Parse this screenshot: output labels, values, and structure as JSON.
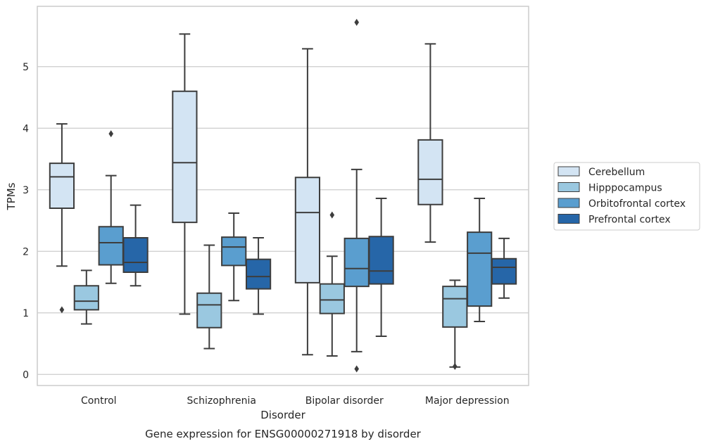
{
  "chart_data": {
    "type": "box",
    "title": "Gene expression for ENSG00000271918 by disorder",
    "xlabel": "Disorder",
    "ylabel": "TPMs",
    "ylim": [
      -0.18,
      5.98
    ],
    "yticks": [
      0,
      1,
      2,
      3,
      4,
      5
    ],
    "grid": true,
    "legend_position": "right",
    "categories": [
      "Control",
      "Schizophrenia",
      "Bipolar disorder",
      "Major depression"
    ],
    "series": [
      {
        "name": "Cerebellum",
        "color": "#d3e4f3",
        "boxes": [
          {
            "whislo": 1.76,
            "q1": 2.7,
            "med": 3.21,
            "q3": 3.43,
            "whishi": 4.07,
            "fliers": [
              1.05
            ]
          },
          {
            "whislo": 0.98,
            "q1": 2.47,
            "med": 3.44,
            "q3": 4.6,
            "whishi": 5.53,
            "fliers": []
          },
          {
            "whislo": 0.32,
            "q1": 1.49,
            "med": 2.63,
            "q3": 3.2,
            "whishi": 5.29,
            "fliers": []
          },
          {
            "whislo": 2.15,
            "q1": 2.76,
            "med": 3.17,
            "q3": 3.81,
            "whishi": 5.37,
            "fliers": []
          }
        ]
      },
      {
        "name": "Hipppocampus",
        "color": "#9ac8e0",
        "boxes": [
          {
            "whislo": 0.82,
            "q1": 1.05,
            "med": 1.19,
            "q3": 1.44,
            "whishi": 1.69,
            "fliers": []
          },
          {
            "whislo": 0.42,
            "q1": 0.76,
            "med": 1.13,
            "q3": 1.32,
            "whishi": 2.1,
            "fliers": []
          },
          {
            "whislo": 0.3,
            "q1": 0.99,
            "med": 1.21,
            "q3": 1.47,
            "whishi": 1.92,
            "fliers": [
              2.59
            ]
          },
          {
            "whislo": 0.12,
            "q1": 0.77,
            "med": 1.23,
            "q3": 1.43,
            "whishi": 1.53,
            "fliers": [
              0.13
            ]
          }
        ]
      },
      {
        "name": "Orbitofrontal cortex",
        "color": "#5a9ecf",
        "boxes": [
          {
            "whislo": 1.48,
            "q1": 1.78,
            "med": 2.14,
            "q3": 2.4,
            "whishi": 3.23,
            "fliers": [
              3.91
            ]
          },
          {
            "whislo": 1.2,
            "q1": 1.77,
            "med": 2.07,
            "q3": 2.23,
            "whishi": 2.62,
            "fliers": []
          },
          {
            "whislo": 0.37,
            "q1": 1.43,
            "med": 1.72,
            "q3": 2.21,
            "whishi": 3.33,
            "fliers": [
              5.72,
              0.09
            ]
          },
          {
            "whislo": 0.86,
            "q1": 1.11,
            "med": 1.97,
            "q3": 2.31,
            "whishi": 2.86,
            "fliers": []
          }
        ]
      },
      {
        "name": "Prefrontal cortex",
        "color": "#2666a8",
        "boxes": [
          {
            "whislo": 1.44,
            "q1": 1.66,
            "med": 1.82,
            "q3": 2.22,
            "whishi": 2.75,
            "fliers": []
          },
          {
            "whislo": 0.98,
            "q1": 1.39,
            "med": 1.59,
            "q3": 1.87,
            "whishi": 2.22,
            "fliers": []
          },
          {
            "whislo": 0.62,
            "q1": 1.47,
            "med": 1.68,
            "q3": 2.24,
            "whishi": 2.86,
            "fliers": []
          },
          {
            "whislo": 1.24,
            "q1": 1.47,
            "med": 1.74,
            "q3": 1.88,
            "whishi": 2.21,
            "fliers": []
          }
        ]
      }
    ]
  }
}
